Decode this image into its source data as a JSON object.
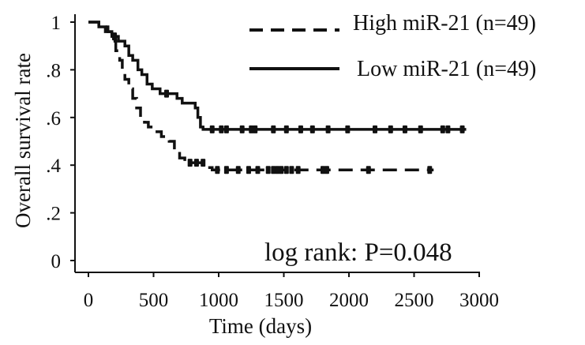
{
  "chart_data": {
    "type": "line",
    "subtype": "kaplan-meier survival curve",
    "xlabel": "Time (days)",
    "ylabel": "Overall survival rate",
    "xlim": [
      0,
      3000
    ],
    "ylim": [
      0,
      1
    ],
    "x_ticks": [
      0,
      500,
      1000,
      1500,
      2000,
      2500,
      3000
    ],
    "x_tick_labels": [
      "0",
      "500",
      "1000",
      "1500",
      "2000",
      "2500",
      "3000"
    ],
    "y_ticks": [
      0,
      0.2,
      0.4,
      0.6,
      0.8,
      1
    ],
    "y_tick_labels": [
      "0",
      ".2",
      ".4",
      ".6",
      ".8",
      "1"
    ],
    "grid": false,
    "legend_position": "top-right",
    "annotation": "log rank: P=0.048",
    "series": [
      {
        "name": "High miR-21 (n=49)",
        "style": "dashed",
        "color": "#111111",
        "steps": [
          [
            0,
            1.0
          ],
          [
            80,
            0.98
          ],
          [
            150,
            0.96
          ],
          [
            180,
            0.92
          ],
          [
            210,
            0.88
          ],
          [
            240,
            0.84
          ],
          [
            260,
            0.8
          ],
          [
            280,
            0.76
          ],
          [
            310,
            0.72
          ],
          [
            340,
            0.68
          ],
          [
            370,
            0.64
          ],
          [
            400,
            0.6
          ],
          [
            430,
            0.58
          ],
          [
            460,
            0.56
          ],
          [
            500,
            0.54
          ],
          [
            560,
            0.52
          ],
          [
            620,
            0.5
          ],
          [
            660,
            0.46
          ],
          [
            700,
            0.43
          ],
          [
            740,
            0.41
          ],
          [
            900,
            0.39
          ],
          [
            950,
            0.38
          ],
          [
            2650,
            0.38
          ]
        ],
        "censored_x": [
          780,
          830,
          880,
          990,
          1060,
          1150,
          1230,
          1300,
          1380,
          1420,
          1450,
          1480,
          1520,
          1560,
          1610,
          1800,
          1830,
          2150,
          2620
        ]
      },
      {
        "name": "Low miR-21 (n=49)",
        "style": "solid",
        "color": "#111111",
        "steps": [
          [
            0,
            1.0
          ],
          [
            80,
            0.98
          ],
          [
            130,
            0.96
          ],
          [
            180,
            0.94
          ],
          [
            230,
            0.92
          ],
          [
            280,
            0.9
          ],
          [
            310,
            0.86
          ],
          [
            340,
            0.84
          ],
          [
            380,
            0.8
          ],
          [
            410,
            0.78
          ],
          [
            450,
            0.74
          ],
          [
            490,
            0.72
          ],
          [
            550,
            0.7
          ],
          [
            680,
            0.68
          ],
          [
            720,
            0.66
          ],
          [
            820,
            0.64
          ],
          [
            840,
            0.6
          ],
          [
            860,
            0.56
          ],
          [
            880,
            0.55
          ],
          [
            2900,
            0.55
          ]
        ],
        "censored_x": [
          200,
          600,
          950,
          1020,
          1060,
          1180,
          1250,
          1280,
          1420,
          1520,
          1630,
          1720,
          1840,
          1990,
          2200,
          2320,
          2430,
          2550,
          2720,
          2760,
          2870
        ]
      }
    ]
  }
}
